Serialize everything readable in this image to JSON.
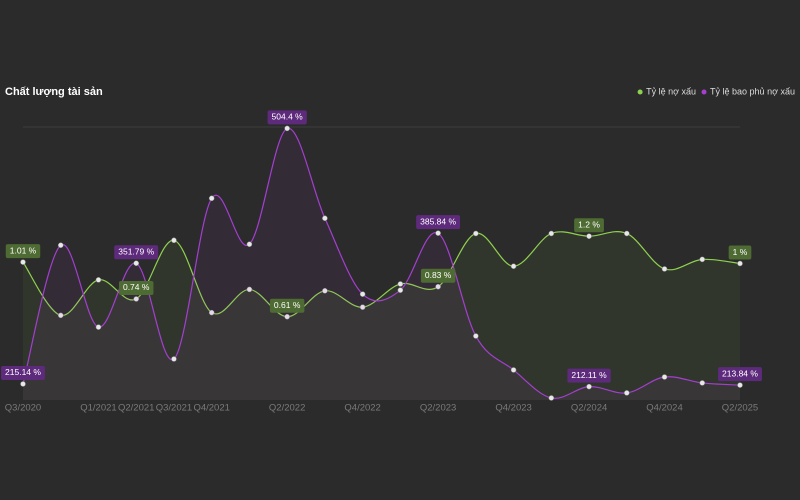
{
  "chart_data": {
    "type": "line",
    "title": "Chất lượng tài sản",
    "categories": [
      "Q3/2020",
      null,
      "Q1/2021",
      "Q2/2021",
      "Q3/2021",
      "Q4/2021",
      null,
      "Q2/2022",
      null,
      "Q4/2022",
      null,
      "Q2/2023",
      null,
      "Q4/2023",
      null,
      "Q2/2024",
      null,
      "Q4/2024",
      null,
      "Q2/2025"
    ],
    "ylim": [
      0,
      2
    ],
    "y2lim": [
      197,
      506
    ],
    "legend": "top-right",
    "series": [
      {
        "name": "Tỷ lệ nợ xấu",
        "color": "#8fd14f",
        "axis": "y",
        "values": [
          1.01,
          0.62,
          0.88,
          0.74,
          1.17,
          0.64,
          0.81,
          0.61,
          0.8,
          0.68,
          0.85,
          0.83,
          1.22,
          0.98,
          1.22,
          1.2,
          1.22,
          0.96,
          1.03,
          1
        ],
        "value_labels": [
          "1.01 %",
          null,
          null,
          "0.74 %",
          null,
          null,
          null,
          "0.61 %",
          null,
          null,
          null,
          "0.83 %",
          null,
          null,
          null,
          "1.2 %",
          null,
          null,
          null,
          "1 %"
        ]
      },
      {
        "name": "Tỷ lệ bao phủ nợ xấu",
        "color": "#a43fd0",
        "axis": "y2",
        "values": [
          215.14,
          372.2,
          279.5,
          351.79,
          243.4,
          425.3,
          373.3,
          504.4,
          402.7,
          316.8,
          321.3,
          385.84,
          269.4,
          231,
          199.3,
          212.11,
          205,
          223,
          216.3,
          213.84
        ],
        "value_labels": [
          "215.14 %",
          null,
          null,
          "351.79 %",
          null,
          null,
          null,
          "504.4 %",
          null,
          null,
          null,
          "385.84 %",
          null,
          null,
          null,
          "212.11 %",
          null,
          null,
          null,
          "213.84 %"
        ]
      }
    ]
  }
}
